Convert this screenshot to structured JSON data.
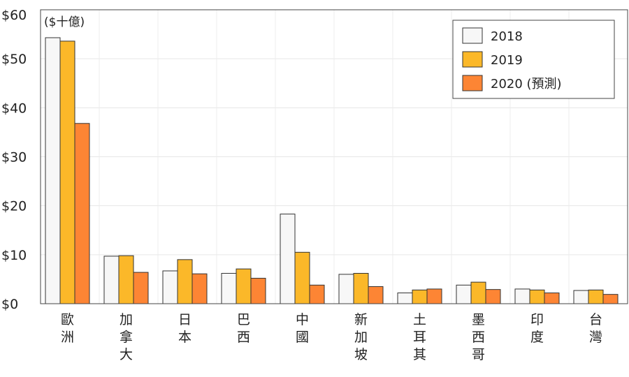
{
  "chart_data": {
    "type": "bar",
    "unit_label": "($十億)",
    "categories": [
      "歐洲",
      "加拿大",
      "日本",
      "巴西",
      "中國",
      "新加坡",
      "土耳其",
      "墨西哥",
      "印度",
      "台灣"
    ],
    "series": [
      {
        "name": "2018",
        "color": "#f7f7f7",
        "values": [
          54.3,
          9.7,
          6.7,
          6.2,
          18.3,
          6.0,
          2.2,
          3.8,
          3.0,
          2.7
        ]
      },
      {
        "name": "2019",
        "color": "#fbb829",
        "values": [
          53.6,
          9.8,
          9.0,
          7.1,
          10.5,
          6.2,
          2.8,
          4.4,
          2.8,
          2.8
        ]
      },
      {
        "name": "2020 (預測)",
        "color": "#fd8534",
        "values": [
          36.8,
          6.4,
          6.1,
          5.2,
          3.8,
          3.5,
          3.0,
          2.9,
          2.2,
          1.9
        ]
      }
    ],
    "y_tick_labels": [
      "$0",
      "$10",
      "$20",
      "$30",
      "$40",
      "$50",
      "$60"
    ],
    "y_ticks": [
      0,
      10,
      20,
      30,
      40,
      50,
      60
    ],
    "ylim": [
      0,
      60
    ],
    "grid": true,
    "legend_position": "top-right"
  }
}
